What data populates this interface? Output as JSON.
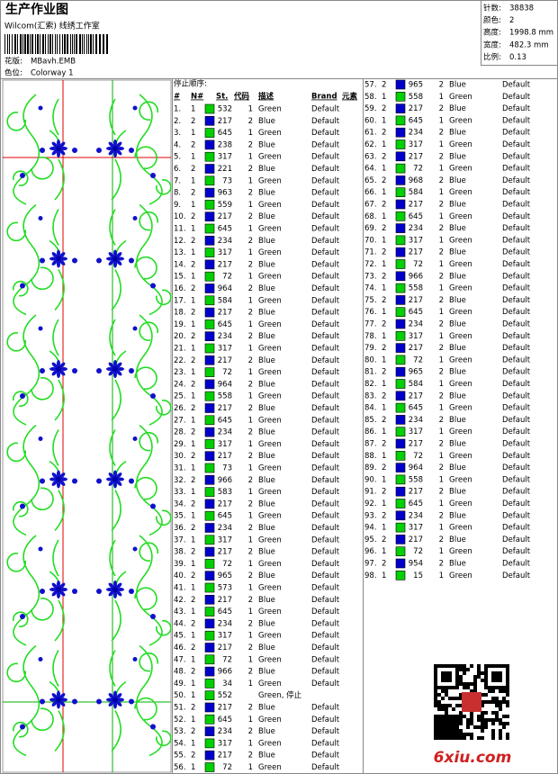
{
  "header": {
    "title": "生产作业图",
    "studio": "Wilcom(汇索) 线绣工作室",
    "design_label": "花版:",
    "design": "MBavh.EMB",
    "colorway_label": "色位:",
    "colorway": "Colorway 1"
  },
  "stats": [
    [
      "针数:",
      "38838"
    ],
    [
      "颜色:",
      "2"
    ],
    [
      "高度:",
      "1998.8 mm"
    ],
    [
      "宽度:",
      "482.3 mm"
    ],
    [
      "比例:",
      "0.13"
    ]
  ],
  "table": {
    "caption": "停止顺序:",
    "columns": [
      "#",
      "N#",
      "St.",
      "代码",
      "描述",
      "Brand",
      "元素"
    ],
    "needle_colors": {
      "1": "#00d000",
      "2": "#0000cc"
    },
    "rows": [
      [
        "1.",
        "1",
        "532",
        "1",
        "Green",
        "Default"
      ],
      [
        "2.",
        "2",
        "217",
        "2",
        "Blue",
        "Default"
      ],
      [
        "3.",
        "1",
        "645",
        "1",
        "Green",
        "Default"
      ],
      [
        "4.",
        "2",
        "238",
        "2",
        "Blue",
        "Default"
      ],
      [
        "5.",
        "1",
        "317",
        "1",
        "Green",
        "Default"
      ],
      [
        "6.",
        "2",
        "221",
        "2",
        "Blue",
        "Default"
      ],
      [
        "7.",
        "1",
        "73",
        "1",
        "Green",
        "Default"
      ],
      [
        "8.",
        "2",
        "963",
        "2",
        "Blue",
        "Default"
      ],
      [
        "9.",
        "1",
        "559",
        "1",
        "Green",
        "Default"
      ],
      [
        "10.",
        "2",
        "217",
        "2",
        "Blue",
        "Default"
      ],
      [
        "11.",
        "1",
        "645",
        "1",
        "Green",
        "Default"
      ],
      [
        "12.",
        "2",
        "234",
        "2",
        "Blue",
        "Default"
      ],
      [
        "13.",
        "1",
        "317",
        "1",
        "Green",
        "Default"
      ],
      [
        "14.",
        "2",
        "217",
        "2",
        "Blue",
        "Default"
      ],
      [
        "15.",
        "1",
        "72",
        "1",
        "Green",
        "Default"
      ],
      [
        "16.",
        "2",
        "964",
        "2",
        "Blue",
        "Default"
      ],
      [
        "17.",
        "1",
        "584",
        "1",
        "Green",
        "Default"
      ],
      [
        "18.",
        "2",
        "217",
        "2",
        "Blue",
        "Default"
      ],
      [
        "19.",
        "1",
        "645",
        "1",
        "Green",
        "Default"
      ],
      [
        "20.",
        "2",
        "234",
        "2",
        "Blue",
        "Default"
      ],
      [
        "21.",
        "1",
        "317",
        "1",
        "Green",
        "Default"
      ],
      [
        "22.",
        "2",
        "217",
        "2",
        "Blue",
        "Default"
      ],
      [
        "23.",
        "1",
        "72",
        "1",
        "Green",
        "Default"
      ],
      [
        "24.",
        "2",
        "964",
        "2",
        "Blue",
        "Default"
      ],
      [
        "25.",
        "1",
        "558",
        "1",
        "Green",
        "Default"
      ],
      [
        "26.",
        "2",
        "217",
        "2",
        "Blue",
        "Default"
      ],
      [
        "27.",
        "1",
        "645",
        "1",
        "Green",
        "Default"
      ],
      [
        "28.",
        "2",
        "234",
        "2",
        "Blue",
        "Default"
      ],
      [
        "29.",
        "1",
        "317",
        "1",
        "Green",
        "Default"
      ],
      [
        "30.",
        "2",
        "217",
        "2",
        "Blue",
        "Default"
      ],
      [
        "31.",
        "1",
        "73",
        "1",
        "Green",
        "Default"
      ],
      [
        "32.",
        "2",
        "966",
        "2",
        "Blue",
        "Default"
      ],
      [
        "33.",
        "1",
        "583",
        "1",
        "Green",
        "Default"
      ],
      [
        "34.",
        "2",
        "217",
        "2",
        "Blue",
        "Default"
      ],
      [
        "35.",
        "1",
        "645",
        "1",
        "Green",
        "Default"
      ],
      [
        "36.",
        "2",
        "234",
        "2",
        "Blue",
        "Default"
      ],
      [
        "37.",
        "1",
        "317",
        "1",
        "Green",
        "Default"
      ],
      [
        "38.",
        "2",
        "217",
        "2",
        "Blue",
        "Default"
      ],
      [
        "39.",
        "1",
        "72",
        "1",
        "Green",
        "Default"
      ],
      [
        "40.",
        "2",
        "965",
        "2",
        "Blue",
        "Default"
      ],
      [
        "41.",
        "1",
        "573",
        "1",
        "Green",
        "Default"
      ],
      [
        "42.",
        "2",
        "217",
        "2",
        "Blue",
        "Default"
      ],
      [
        "43.",
        "1",
        "645",
        "1",
        "Green",
        "Default"
      ],
      [
        "44.",
        "2",
        "234",
        "2",
        "Blue",
        "Default"
      ],
      [
        "45.",
        "1",
        "317",
        "1",
        "Green",
        "Default"
      ],
      [
        "46.",
        "2",
        "217",
        "2",
        "Blue",
        "Default"
      ],
      [
        "47.",
        "1",
        "72",
        "1",
        "Green",
        "Default"
      ],
      [
        "48.",
        "2",
        "966",
        "2",
        "Blue",
        "Default"
      ],
      [
        "49.",
        "1",
        "34",
        "1",
        "Green",
        "Default"
      ],
      [
        "50.",
        "1",
        "552",
        "Green, 停止"
      ],
      [
        "51.",
        "2",
        "217",
        "2",
        "Blue",
        "Default"
      ],
      [
        "52.",
        "1",
        "645",
        "1",
        "Green",
        "Default"
      ],
      [
        "53.",
        "2",
        "234",
        "2",
        "Blue",
        "Default"
      ],
      [
        "54.",
        "1",
        "317",
        "1",
        "Green",
        "Default"
      ],
      [
        "55.",
        "2",
        "217",
        "2",
        "Blue",
        "Default"
      ],
      [
        "56.",
        "1",
        "72",
        "1",
        "Green",
        "Default"
      ],
      [
        "57.",
        "2",
        "965",
        "2",
        "Blue",
        "Default"
      ],
      [
        "58.",
        "1",
        "558",
        "1",
        "Green",
        "Default"
      ],
      [
        "59.",
        "2",
        "217",
        "2",
        "Blue",
        "Default"
      ],
      [
        "60.",
        "1",
        "645",
        "1",
        "Green",
        "Default"
      ],
      [
        "61.",
        "2",
        "234",
        "2",
        "Blue",
        "Default"
      ],
      [
        "62.",
        "1",
        "317",
        "1",
        "Green",
        "Default"
      ],
      [
        "63.",
        "2",
        "217",
        "2",
        "Blue",
        "Default"
      ],
      [
        "64.",
        "1",
        "72",
        "1",
        "Green",
        "Default"
      ],
      [
        "65.",
        "2",
        "968",
        "2",
        "Blue",
        "Default"
      ],
      [
        "66.",
        "1",
        "584",
        "1",
        "Green",
        "Default"
      ],
      [
        "67.",
        "2",
        "217",
        "2",
        "Blue",
        "Default"
      ],
      [
        "68.",
        "1",
        "645",
        "1",
        "Green",
        "Default"
      ],
      [
        "69.",
        "2",
        "234",
        "2",
        "Blue",
        "Default"
      ],
      [
        "70.",
        "1",
        "317",
        "1",
        "Green",
        "Default"
      ],
      [
        "71.",
        "2",
        "217",
        "2",
        "Blue",
        "Default"
      ],
      [
        "72.",
        "1",
        "72",
        "1",
        "Green",
        "Default"
      ],
      [
        "73.",
        "2",
        "966",
        "2",
        "Blue",
        "Default"
      ],
      [
        "74.",
        "1",
        "558",
        "1",
        "Green",
        "Default"
      ],
      [
        "75.",
        "2",
        "217",
        "2",
        "Blue",
        "Default"
      ],
      [
        "76.",
        "1",
        "645",
        "1",
        "Green",
        "Default"
      ],
      [
        "77.",
        "2",
        "234",
        "2",
        "Blue",
        "Default"
      ],
      [
        "78.",
        "1",
        "317",
        "1",
        "Green",
        "Default"
      ],
      [
        "79.",
        "2",
        "217",
        "2",
        "Blue",
        "Default"
      ],
      [
        "80.",
        "1",
        "72",
        "1",
        "Green",
        "Default"
      ],
      [
        "81.",
        "2",
        "965",
        "2",
        "Blue",
        "Default"
      ],
      [
        "82.",
        "1",
        "584",
        "1",
        "Green",
        "Default"
      ],
      [
        "83.",
        "2",
        "217",
        "2",
        "Blue",
        "Default"
      ],
      [
        "84.",
        "1",
        "645",
        "1",
        "Green",
        "Default"
      ],
      [
        "85.",
        "2",
        "234",
        "2",
        "Blue",
        "Default"
      ],
      [
        "86.",
        "1",
        "317",
        "1",
        "Green",
        "Default"
      ],
      [
        "87.",
        "2",
        "217",
        "2",
        "Blue",
        "Default"
      ],
      [
        "88.",
        "1",
        "72",
        "1",
        "Green",
        "Default"
      ],
      [
        "89.",
        "2",
        "964",
        "2",
        "Blue",
        "Default"
      ],
      [
        "90.",
        "1",
        "558",
        "1",
        "Green",
        "Default"
      ],
      [
        "91.",
        "2",
        "217",
        "2",
        "Blue",
        "Default"
      ],
      [
        "92.",
        "1",
        "645",
        "1",
        "Green",
        "Default"
      ],
      [
        "93.",
        "2",
        "234",
        "2",
        "Blue",
        "Default"
      ],
      [
        "94.",
        "1",
        "317",
        "1",
        "Green",
        "Default"
      ],
      [
        "95.",
        "2",
        "217",
        "2",
        "Blue",
        "Default"
      ],
      [
        "96.",
        "1",
        "72",
        "1",
        "Green",
        "Default"
      ],
      [
        "97.",
        "2",
        "954",
        "2",
        "Blue",
        "Default"
      ],
      [
        "98.",
        "1",
        "15",
        "1",
        "Green",
        "Default"
      ]
    ]
  },
  "watermark": "6xiu.com"
}
